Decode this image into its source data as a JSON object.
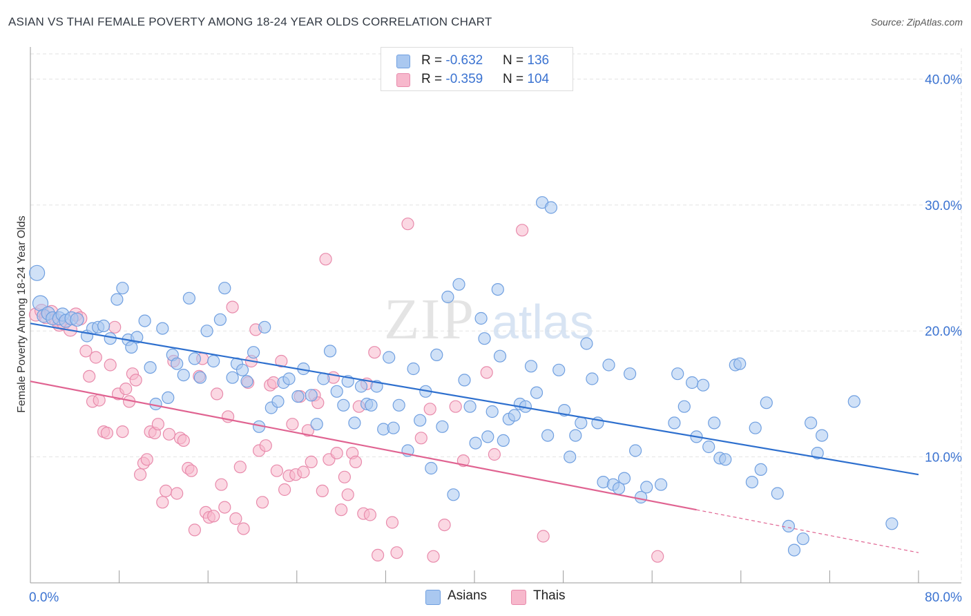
{
  "title": "ASIAN VS THAI FEMALE POVERTY AMONG 18-24 YEAR OLDS CORRELATION CHART",
  "source": "Source: ZipAtlas.com",
  "watermark": {
    "part1": "ZIP",
    "part2": "atlas"
  },
  "legend": {
    "items": [
      {
        "r_label": "R = ",
        "r_value": "-0.632",
        "n_label": "N = ",
        "n_value": "136",
        "color": "#aac8f0",
        "border": "#6f9fe0"
      },
      {
        "r_label": "R = ",
        "r_value": "-0.359",
        "n_label": "N = ",
        "n_value": "104",
        "color": "#f7b8cc",
        "border": "#e88aab"
      }
    ]
  },
  "bottom_legend": [
    {
      "label": "Asians",
      "color": "#aac8f0",
      "border": "#6f9fe0"
    },
    {
      "label": "Thais",
      "color": "#f7b8cc",
      "border": "#e88aab"
    }
  ],
  "chart_data": {
    "type": "scatter",
    "title": "ASIAN VS THAI FEMALE POVERTY AMONG 18-24 YEAR OLDS CORRELATION CHART",
    "xlabel": "",
    "ylabel": "Female Poverty Among 18-24 Year Olds",
    "xlim": [
      0,
      80
    ],
    "ylim": [
      0,
      42
    ],
    "x_tick_labels": [
      "0.0%",
      "80.0%"
    ],
    "y_ticks": [
      10,
      20,
      30,
      40
    ],
    "y_tick_labels": [
      "10.0%",
      "20.0%",
      "30.0%",
      "40.0%"
    ],
    "grid": true,
    "legend_position": "top-center",
    "series": [
      {
        "name": "Asians",
        "color": "#6f9fe0",
        "fill": "#aac8f0",
        "trend_color": "#2d6fce",
        "trend": {
          "x": [
            0,
            80
          ],
          "y": [
            20.6,
            8.6
          ]
        },
        "points": [
          [
            0.6,
            24.6
          ],
          [
            0.9,
            22.2
          ],
          [
            1.2,
            21.2
          ],
          [
            1.6,
            21.4
          ],
          [
            2.0,
            21.0
          ],
          [
            2.6,
            21.0
          ],
          [
            2.9,
            21.3
          ],
          [
            3.2,
            20.8
          ],
          [
            3.7,
            21.0
          ],
          [
            4.2,
            20.9
          ],
          [
            5.1,
            19.6
          ],
          [
            5.6,
            20.2
          ],
          [
            6.1,
            20.3
          ],
          [
            6.6,
            20.4
          ],
          [
            7.2,
            19.4
          ],
          [
            7.8,
            22.5
          ],
          [
            8.3,
            23.4
          ],
          [
            8.8,
            19.3
          ],
          [
            9.1,
            18.7
          ],
          [
            9.6,
            19.5
          ],
          [
            10.3,
            20.8
          ],
          [
            10.8,
            17.1
          ],
          [
            11.3,
            14.2
          ],
          [
            11.9,
            20.2
          ],
          [
            12.4,
            14.7
          ],
          [
            12.8,
            18.1
          ],
          [
            13.2,
            17.4
          ],
          [
            13.8,
            16.5
          ],
          [
            14.3,
            22.6
          ],
          [
            14.8,
            17.8
          ],
          [
            15.3,
            16.3
          ],
          [
            15.9,
            20.0
          ],
          [
            16.5,
            17.6
          ],
          [
            17.1,
            20.9
          ],
          [
            17.5,
            23.4
          ],
          [
            18.2,
            16.3
          ],
          [
            18.6,
            17.4
          ],
          [
            19.1,
            16.9
          ],
          [
            19.5,
            16.0
          ],
          [
            20.1,
            18.3
          ],
          [
            20.6,
            12.4
          ],
          [
            21.1,
            20.3
          ],
          [
            21.7,
            13.9
          ],
          [
            22.3,
            14.4
          ],
          [
            22.8,
            15.9
          ],
          [
            23.3,
            16.2
          ],
          [
            24.1,
            14.8
          ],
          [
            24.6,
            17.0
          ],
          [
            25.3,
            14.9
          ],
          [
            25.8,
            12.6
          ],
          [
            26.4,
            16.2
          ],
          [
            27.0,
            18.4
          ],
          [
            27.6,
            15.2
          ],
          [
            28.2,
            14.1
          ],
          [
            28.6,
            16.0
          ],
          [
            29.2,
            12.7
          ],
          [
            29.8,
            15.6
          ],
          [
            30.3,
            14.2
          ],
          [
            30.7,
            14.1
          ],
          [
            31.2,
            15.6
          ],
          [
            31.8,
            12.2
          ],
          [
            32.3,
            17.9
          ],
          [
            32.7,
            12.3
          ],
          [
            33.2,
            14.1
          ],
          [
            34.0,
            10.5
          ],
          [
            34.5,
            17.0
          ],
          [
            35.1,
            12.9
          ],
          [
            35.6,
            15.2
          ],
          [
            36.1,
            9.1
          ],
          [
            36.6,
            18.1
          ],
          [
            37.1,
            12.4
          ],
          [
            37.6,
            22.7
          ],
          [
            38.1,
            7.0
          ],
          [
            38.6,
            23.7
          ],
          [
            39.1,
            16.1
          ],
          [
            39.6,
            14.0
          ],
          [
            40.1,
            11.1
          ],
          [
            40.6,
            21.0
          ],
          [
            40.9,
            19.4
          ],
          [
            41.2,
            11.6
          ],
          [
            41.6,
            13.6
          ],
          [
            42.1,
            23.3
          ],
          [
            42.6,
            11.3
          ],
          [
            43.1,
            13.0
          ],
          [
            43.6,
            13.3
          ],
          [
            44.1,
            14.2
          ],
          [
            44.6,
            14.0
          ],
          [
            45.1,
            17.2
          ],
          [
            45.6,
            15.1
          ],
          [
            46.1,
            30.2
          ],
          [
            46.6,
            11.7
          ],
          [
            46.9,
            29.8
          ],
          [
            47.6,
            16.9
          ],
          [
            48.1,
            13.7
          ],
          [
            48.6,
            10.0
          ],
          [
            49.1,
            11.7
          ],
          [
            49.6,
            12.7
          ],
          [
            50.1,
            19.0
          ],
          [
            50.6,
            16.2
          ],
          [
            51.1,
            12.7
          ],
          [
            51.6,
            8.0
          ],
          [
            52.1,
            17.3
          ],
          [
            52.5,
            7.8
          ],
          [
            53.0,
            7.5
          ],
          [
            53.5,
            8.3
          ],
          [
            54.0,
            16.6
          ],
          [
            54.5,
            10.5
          ],
          [
            55.0,
            6.8
          ],
          [
            55.5,
            7.6
          ],
          [
            56.8,
            7.8
          ],
          [
            58.0,
            12.7
          ],
          [
            58.3,
            16.6
          ],
          [
            58.9,
            14.0
          ],
          [
            59.6,
            15.9
          ],
          [
            60.0,
            11.6
          ],
          [
            60.6,
            15.7
          ],
          [
            61.1,
            10.8
          ],
          [
            61.6,
            12.7
          ],
          [
            62.1,
            9.9
          ],
          [
            62.6,
            9.8
          ],
          [
            63.5,
            17.3
          ],
          [
            63.9,
            17.4
          ],
          [
            65.0,
            8.0
          ],
          [
            65.3,
            12.3
          ],
          [
            65.8,
            9.0
          ],
          [
            66.3,
            14.3
          ],
          [
            67.3,
            7.1
          ],
          [
            68.3,
            4.5
          ],
          [
            68.8,
            2.6
          ],
          [
            69.6,
            3.5
          ],
          [
            70.3,
            12.7
          ],
          [
            70.9,
            10.3
          ],
          [
            71.3,
            11.7
          ],
          [
            74.2,
            14.4
          ],
          [
            77.6,
            4.7
          ],
          [
            42.3,
            18.0
          ]
        ]
      },
      {
        "name": "Thais",
        "color": "#e88aab",
        "fill": "#f7b8cc",
        "trend_color": "#e06391",
        "trend": {
          "x": [
            0,
            60
          ],
          "y": [
            16.0,
            5.8
          ]
        },
        "trend_dashed": {
          "x": [
            60,
            80
          ],
          "y": [
            5.8,
            2.4
          ]
        },
        "points": [
          [
            0.5,
            21.3
          ],
          [
            1.0,
            21.6
          ],
          [
            1.4,
            21.1
          ],
          [
            1.9,
            21.5
          ],
          [
            2.3,
            20.9
          ],
          [
            2.6,
            20.5
          ],
          [
            3.0,
            20.6
          ],
          [
            3.6,
            20.1
          ],
          [
            4.1,
            21.3
          ],
          [
            4.5,
            21.0
          ],
          [
            5.0,
            18.4
          ],
          [
            5.3,
            16.4
          ],
          [
            5.6,
            14.4
          ],
          [
            5.9,
            17.9
          ],
          [
            6.2,
            14.5
          ],
          [
            6.6,
            12.0
          ],
          [
            6.9,
            11.9
          ],
          [
            7.2,
            17.3
          ],
          [
            7.6,
            20.3
          ],
          [
            7.9,
            15.0
          ],
          [
            8.3,
            12.0
          ],
          [
            8.6,
            15.4
          ],
          [
            8.9,
            14.4
          ],
          [
            9.2,
            16.6
          ],
          [
            9.5,
            16.1
          ],
          [
            9.9,
            8.6
          ],
          [
            10.2,
            9.5
          ],
          [
            10.5,
            9.8
          ],
          [
            10.8,
            12.0
          ],
          [
            11.2,
            11.9
          ],
          [
            11.5,
            12.6
          ],
          [
            11.9,
            6.4
          ],
          [
            12.2,
            7.3
          ],
          [
            12.5,
            11.8
          ],
          [
            12.9,
            17.6
          ],
          [
            13.2,
            7.1
          ],
          [
            13.5,
            11.5
          ],
          [
            13.8,
            11.3
          ],
          [
            14.2,
            9.1
          ],
          [
            14.5,
            8.9
          ],
          [
            14.8,
            4.2
          ],
          [
            15.2,
            16.4
          ],
          [
            15.5,
            17.8
          ],
          [
            15.8,
            5.6
          ],
          [
            16.1,
            5.2
          ],
          [
            16.5,
            5.3
          ],
          [
            16.8,
            15.0
          ],
          [
            17.2,
            7.8
          ],
          [
            17.5,
            6.0
          ],
          [
            17.8,
            13.2
          ],
          [
            18.2,
            21.9
          ],
          [
            18.5,
            5.1
          ],
          [
            18.9,
            9.2
          ],
          [
            19.2,
            4.3
          ],
          [
            19.6,
            15.9
          ],
          [
            19.9,
            17.6
          ],
          [
            20.3,
            20.1
          ],
          [
            20.6,
            10.5
          ],
          [
            20.9,
            6.4
          ],
          [
            21.2,
            10.9
          ],
          [
            21.6,
            15.7
          ],
          [
            21.9,
            15.9
          ],
          [
            22.2,
            8.9
          ],
          [
            22.6,
            17.6
          ],
          [
            22.9,
            7.4
          ],
          [
            23.3,
            8.5
          ],
          [
            23.6,
            12.6
          ],
          [
            23.9,
            8.6
          ],
          [
            24.3,
            14.8
          ],
          [
            24.6,
            8.8
          ],
          [
            25.0,
            12.1
          ],
          [
            25.3,
            9.6
          ],
          [
            25.6,
            14.9
          ],
          [
            25.9,
            14.3
          ],
          [
            26.3,
            7.3
          ],
          [
            26.6,
            25.7
          ],
          [
            26.9,
            9.8
          ],
          [
            27.3,
            16.3
          ],
          [
            27.6,
            10.3
          ],
          [
            28.0,
            5.8
          ],
          [
            28.3,
            8.4
          ],
          [
            28.6,
            7.0
          ],
          [
            29.0,
            10.3
          ],
          [
            29.3,
            9.6
          ],
          [
            29.6,
            14.0
          ],
          [
            30.0,
            5.5
          ],
          [
            30.3,
            15.8
          ],
          [
            30.6,
            5.4
          ],
          [
            31.0,
            18.3
          ],
          [
            31.3,
            2.2
          ],
          [
            32.6,
            4.8
          ],
          [
            33.0,
            2.4
          ],
          [
            34.0,
            28.5
          ],
          [
            35.2,
            11.5
          ],
          [
            36.0,
            13.8
          ],
          [
            36.3,
            2.1
          ],
          [
            37.3,
            4.6
          ],
          [
            38.3,
            14.0
          ],
          [
            39.0,
            9.7
          ],
          [
            41.1,
            16.7
          ],
          [
            41.8,
            10.2
          ],
          [
            44.3,
            28.0
          ],
          [
            46.2,
            3.7
          ],
          [
            56.5,
            2.1
          ]
        ]
      }
    ]
  }
}
